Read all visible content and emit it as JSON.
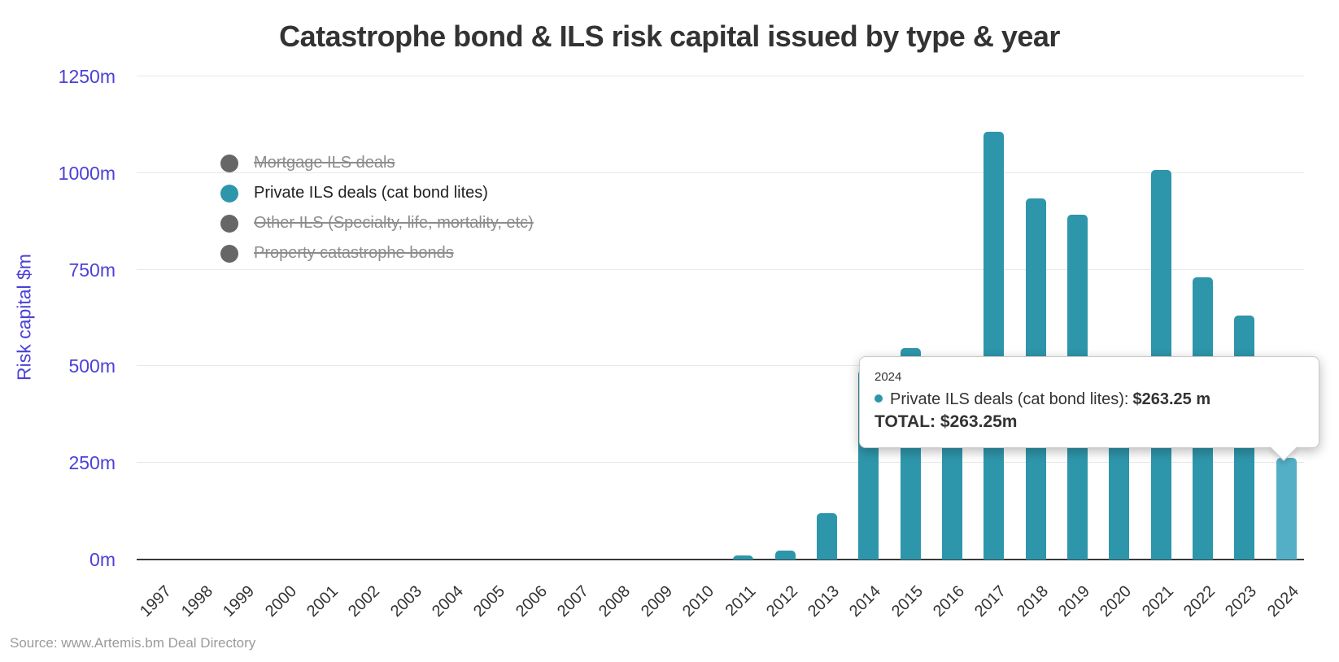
{
  "title": "Catastrophe bond & ILS risk capital issued by type & year",
  "source": "Source: www.Artemis.bm Deal Directory",
  "colors": {
    "accent_teal": "#2e96ab",
    "bar_highlight": "#53afc6",
    "axis_purple": "#4b41d6",
    "grid": "#e8e8e8",
    "axis_line": "#37393b",
    "text_dark": "#333333",
    "legend_disabled_text": "#8c8c8c",
    "legend_dot_disabled": "#666666",
    "source_gray": "#9b9b9b"
  },
  "legend": {
    "items": [
      {
        "label": "Mortgage ILS deals",
        "active": false
      },
      {
        "label": "Private ILS deals (cat bond lites)",
        "active": true
      },
      {
        "label": "Other ILS (Specialty, life, mortality, etc)",
        "active": false
      },
      {
        "label": "Property catastrophe bonds",
        "active": false
      }
    ]
  },
  "tooltip": {
    "year": "2024",
    "series_label": "Private ILS deals (cat bond lites):",
    "series_value": "$263.25 m",
    "total_label": "TOTAL:",
    "total_value": "$263.25m"
  },
  "chart_data": {
    "type": "bar",
    "title": "Catastrophe bond & ILS risk capital issued by type & year",
    "xlabel": "",
    "ylabel": "Risk capital $m",
    "ylim": [
      0,
      1250
    ],
    "grid": true,
    "legend_position": "top-left-inside",
    "y_ticks": [
      "0m",
      "250m",
      "500m",
      "750m",
      "1000m",
      "1250m"
    ],
    "categories": [
      "1997",
      "1998",
      "1999",
      "2000",
      "2001",
      "2002",
      "2003",
      "2004",
      "2005",
      "2006",
      "2007",
      "2008",
      "2009",
      "2010",
      "2011",
      "2012",
      "2013",
      "2014",
      "2015",
      "2016",
      "2017",
      "2018",
      "2019",
      "2020",
      "2021",
      "2022",
      "2023",
      "2024"
    ],
    "series": [
      {
        "name": "Mortgage ILS deals",
        "visible": false,
        "values": []
      },
      {
        "name": "Private ILS deals (cat bond lites)",
        "visible": true,
        "values": [
          0,
          0,
          0,
          0,
          0,
          0,
          0,
          0,
          0,
          0,
          0,
          0,
          0,
          0,
          10,
          23,
          120,
          490,
          548,
          510,
          1107,
          935,
          893,
          440,
          1007,
          731,
          632,
          263.25
        ]
      },
      {
        "name": "Other ILS (Specialty, life, mortality, etc)",
        "visible": false,
        "values": []
      },
      {
        "name": "Property catastrophe bonds",
        "visible": false,
        "values": []
      }
    ],
    "hover_year": "2024"
  }
}
